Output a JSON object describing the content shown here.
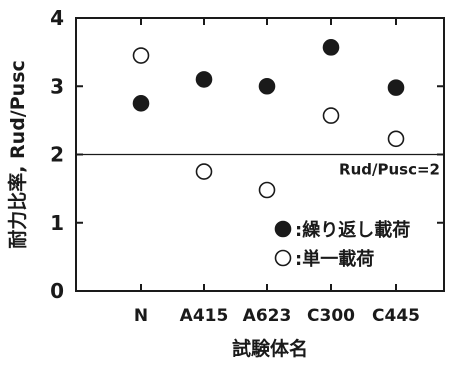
{
  "chart_data": {
    "type": "scatter",
    "title": "",
    "categories": [
      "N",
      "A415",
      "A623",
      "C300",
      "C445"
    ],
    "xlabel": "試験体名",
    "ylabel": "耐力比率, Rud/Pusc",
    "ylim": [
      0,
      4
    ],
    "yticks": [
      "0",
      "1",
      "2",
      "3",
      "4"
    ],
    "grid": false,
    "legend_position": "bottom-right",
    "series": [
      {
        "name": "繰り返し載荷",
        "marker": "filled-circle",
        "values": [
          2.75,
          3.1,
          3.0,
          3.57,
          2.98
        ]
      },
      {
        "name": "単一載荷",
        "marker": "open-circle",
        "values": [
          3.45,
          1.75,
          1.48,
          2.57,
          2.23
        ]
      }
    ],
    "reference_line": {
      "y": 2,
      "label": "Rud/Pusc=2"
    },
    "legend": [
      {
        "marker": "filled-circle",
        "label": ":繰り返し載荷"
      },
      {
        "marker": "open-circle",
        "label": ":単一載荷"
      }
    ]
  }
}
